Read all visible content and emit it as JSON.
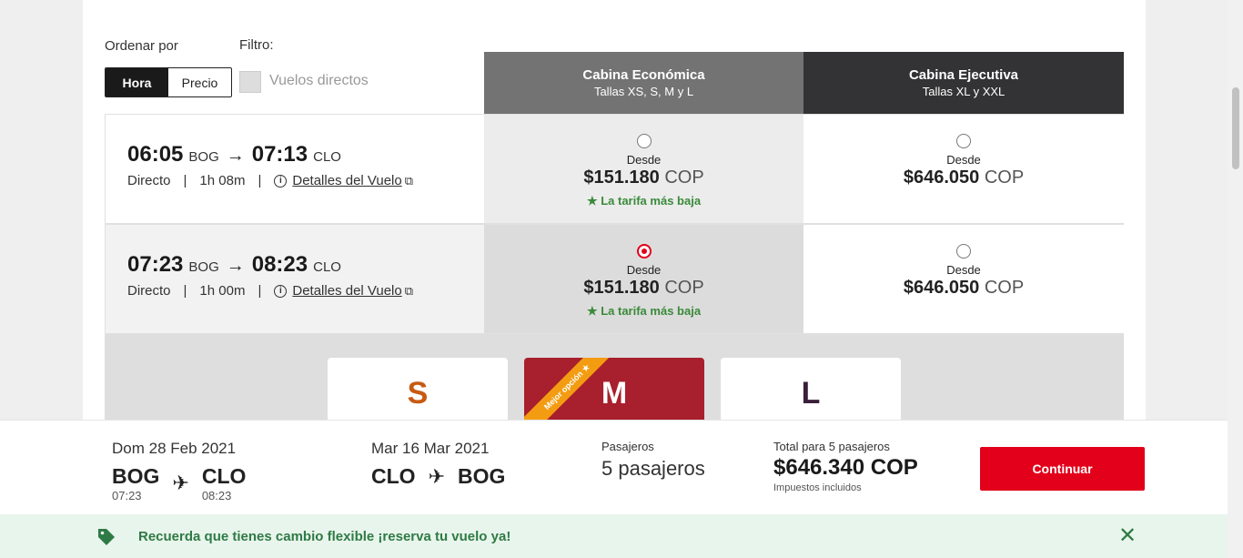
{
  "colors": {
    "brand_red": "#e2001a",
    "eco_header": "#737373",
    "exe_header": "#333335",
    "best_option": "#a81f2d",
    "green": "#2f7a45"
  },
  "sort": {
    "label": "Ordenar por",
    "options": [
      "Hora",
      "Precio"
    ],
    "selected": "Hora"
  },
  "filter": {
    "label": "Filtro:",
    "direct_label": "Vuelos directos",
    "checked": false
  },
  "cabins": [
    {
      "title": "Cabina Económica",
      "subtitle": "Tallas XS, S, M y L"
    },
    {
      "title": "Cabina Ejecutiva",
      "subtitle": "Tallas XL y XXL"
    }
  ],
  "flights": [
    {
      "dep_time": "06:05",
      "dep_airport": "BOG",
      "arr_time": "07:13",
      "arr_airport": "CLO",
      "type": "Directo",
      "duration": "1h 08m",
      "details": "Detalles del Vuelo",
      "eco": {
        "from": "Desde",
        "price": "$151.180",
        "currency": "COP",
        "note": "★ La tarifa más baja",
        "selected": false
      },
      "exe": {
        "from": "Desde",
        "price": "$646.050",
        "currency": "COP",
        "selected": false
      }
    },
    {
      "dep_time": "07:23",
      "dep_airport": "BOG",
      "arr_time": "08:23",
      "arr_airport": "CLO",
      "type": "Directo",
      "duration": "1h 00m",
      "details": "Detalles del Vuelo",
      "eco": {
        "from": "Desde",
        "price": "$151.180",
        "currency": "COP",
        "note": "★ La tarifa más baja",
        "selected": true
      },
      "exe": {
        "from": "Desde",
        "price": "$646.050",
        "currency": "COP",
        "selected": false
      }
    }
  ],
  "sizes": {
    "items": [
      "S",
      "M",
      "L"
    ],
    "best": "M",
    "best_label": "Mejor opción ★"
  },
  "summary": {
    "outbound": {
      "date": "Dom 28 Feb 2021",
      "from": "BOG",
      "to": "CLO",
      "dep_time": "07:23",
      "arr_time": "08:23"
    },
    "return": {
      "date": "Mar 16 Mar 2021",
      "from": "CLO",
      "to": "BOG"
    },
    "passengers_label": "Pasajeros",
    "passengers_value": "5 pasajeros",
    "total_label": "Total para 5 pasajeros",
    "total_value": "$646.340 COP",
    "taxes_note": "Impuestos incluidos",
    "continue_label": "Continuar"
  },
  "banner": {
    "message": "Recuerda que tienes cambio flexible ¡reserva tu vuelo ya!",
    "icon": "tag-icon",
    "close_icon": "close-icon"
  }
}
